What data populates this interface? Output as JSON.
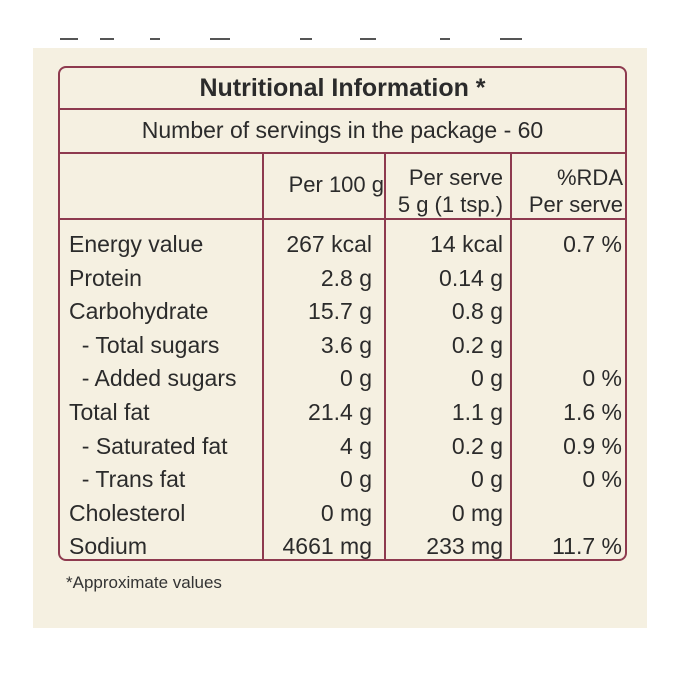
{
  "title": "Nutritional Information *",
  "servings": "Number of servings in the package - 60",
  "headers": {
    "per100": "Per 100 g",
    "perserve_l1": "Per serve",
    "perserve_l2": "5 g (1 tsp.)",
    "rda_l1": "%RDA",
    "rda_l2": "Per serve"
  },
  "rows": [
    {
      "name": "Energy value",
      "per100": "267 kcal",
      "serve": "14 kcal",
      "rda": "0.7 %"
    },
    {
      "name": "Protein",
      "per100": "2.8 g",
      "serve": "0.14 g",
      "rda": ""
    },
    {
      "name": "Carbohydrate",
      "per100": "15.7 g",
      "serve": "0.8 g",
      "rda": ""
    },
    {
      "name": "  - Total sugars",
      "per100": "3.6 g",
      "serve": "0.2 g",
      "rda": ""
    },
    {
      "name": "  - Added sugars",
      "per100": "0 g",
      "serve": "0 g",
      "rda": "0 %"
    },
    {
      "name": "Total fat",
      "per100": "21.4 g",
      "serve": "1.1 g",
      "rda": "1.6 %"
    },
    {
      "name": "  - Saturated fat",
      "per100": "4 g",
      "serve": "0.2 g",
      "rda": "0.9 %"
    },
    {
      "name": "  - Trans fat",
      "per100": "0 g",
      "serve": "0 g",
      "rda": "0 %"
    },
    {
      "name": "Cholesterol",
      "per100": "0 mg",
      "serve": "0 mg",
      "rda": ""
    },
    {
      "name": "Sodium",
      "per100": "4661 mg",
      "serve": "233 mg",
      "rda": "11.7 %"
    }
  ],
  "footnote": "*Approximate values"
}
